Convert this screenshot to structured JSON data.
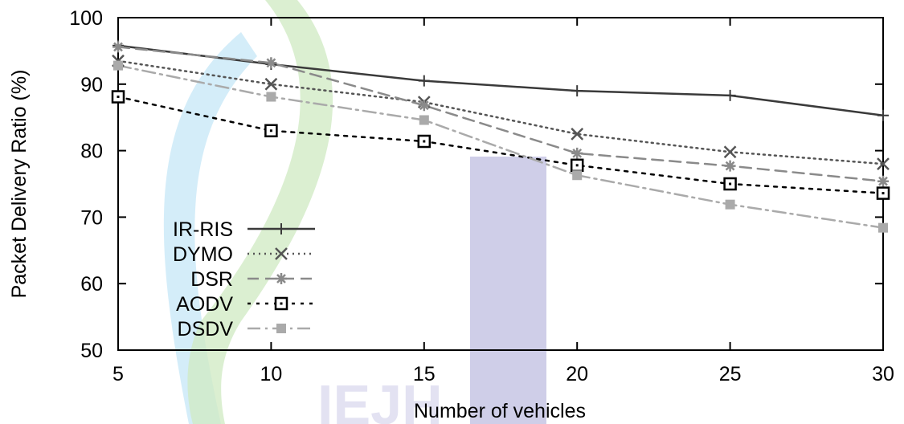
{
  "chart_data": {
    "type": "line",
    "title": "",
    "xlabel": "Number of vehicles",
    "ylabel": "Packet Delivery Ratio (%)",
    "x": [
      5,
      10,
      15,
      20,
      25,
      30
    ],
    "xlim": [
      5,
      30
    ],
    "ylim": [
      50,
      100
    ],
    "xticks": [
      5,
      10,
      15,
      20,
      25,
      30
    ],
    "yticks": [
      50,
      60,
      70,
      80,
      90,
      100
    ],
    "grid": false,
    "legend_position": "bottom-left",
    "series": [
      {
        "name": "IR-RIS",
        "values": [
          95.8,
          93.0,
          90.5,
          89.0,
          88.3,
          85.3
        ],
        "color": "#3a3a3a",
        "dash": "",
        "marker": "plus"
      },
      {
        "name": "DYMO",
        "values": [
          93.5,
          90.0,
          87.3,
          82.5,
          79.8,
          78.0
        ],
        "color": "#555555",
        "dash": "2 5",
        "marker": "x"
      },
      {
        "name": "DSR",
        "values": [
          95.6,
          93.2,
          86.8,
          79.6,
          77.7,
          75.4
        ],
        "color": "#8a8a8a",
        "dash": "14 8",
        "marker": "star"
      },
      {
        "name": "AODV",
        "values": [
          88.1,
          83.0,
          81.4,
          77.8,
          75.0,
          73.6
        ],
        "color": "#000000",
        "dash": "4 7",
        "marker": "square-open"
      },
      {
        "name": "DSDV",
        "values": [
          92.8,
          88.1,
          84.6,
          76.3,
          71.9,
          68.4
        ],
        "color": "#aaaaaa",
        "dash": "16 6 3 6",
        "marker": "square-filled"
      }
    ]
  },
  "watermark": {
    "text": "IEJH",
    "colors": [
      "#8fd0f0",
      "#a8d890",
      "#8c88c8"
    ]
  }
}
